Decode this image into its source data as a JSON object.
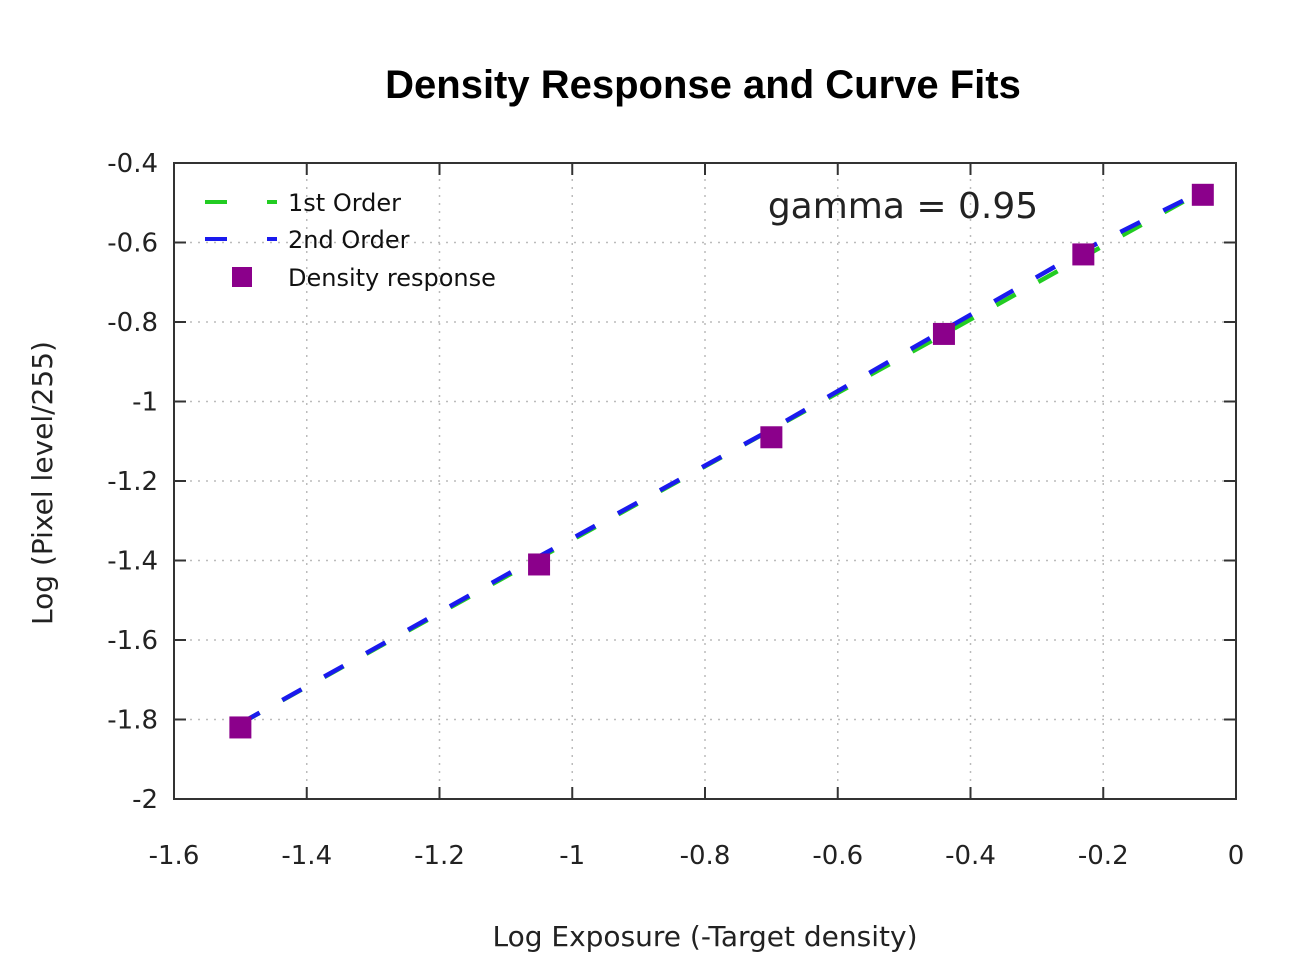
{
  "chart_data": {
    "type": "line",
    "title": "Density Response and Curve Fits",
    "xlabel": "Log Exposure (-Target density)",
    "ylabel": "Log (Pixel level/255)",
    "xlim": [
      -1.6,
      0
    ],
    "ylim": [
      -2,
      -0.4
    ],
    "x_ticks": [
      -1.6,
      -1.4,
      -1.2,
      -1,
      -0.8,
      -0.6,
      -0.4,
      -0.2,
      0
    ],
    "x_tick_labels": [
      "-1.6",
      "-1.4",
      "-1.2",
      "-1",
      "-0.8",
      "-0.6",
      "-0.4",
      "-0.2",
      "0"
    ],
    "y_ticks": [
      -0.4,
      -0.6,
      -0.8,
      -1,
      -1.2,
      -1.4,
      -1.6,
      -1.8,
      -2
    ],
    "y_tick_labels": [
      "-0.4",
      "-0.6",
      "-0.8",
      "-1",
      "-1.2",
      "-1.4",
      "-1.6",
      "-1.8",
      "-2"
    ],
    "grid": true,
    "legend_position": "top-left",
    "annotation": "gamma = 0.95",
    "series": [
      {
        "name": "1st Order",
        "kind": "dashed-line",
        "color": "#22cc22",
        "x": [
          -1.5,
          -0.05
        ],
        "y": [
          -1.81,
          -0.47
        ]
      },
      {
        "name": "2nd Order",
        "kind": "dashed-line",
        "color": "#1a1aee",
        "x": [
          -1.5,
          -1.05,
          -0.7,
          -0.44,
          -0.23,
          -0.05
        ],
        "y": [
          -1.81,
          -1.39,
          -1.07,
          -0.82,
          -0.62,
          -0.47
        ]
      },
      {
        "name": "Density response",
        "kind": "markers",
        "color": "#8b008b",
        "x": [
          -1.5,
          -1.05,
          -0.7,
          -0.44,
          -0.23,
          -0.05
        ],
        "y": [
          -1.82,
          -1.41,
          -1.09,
          -0.83,
          -0.63,
          -0.48
        ]
      }
    ]
  }
}
